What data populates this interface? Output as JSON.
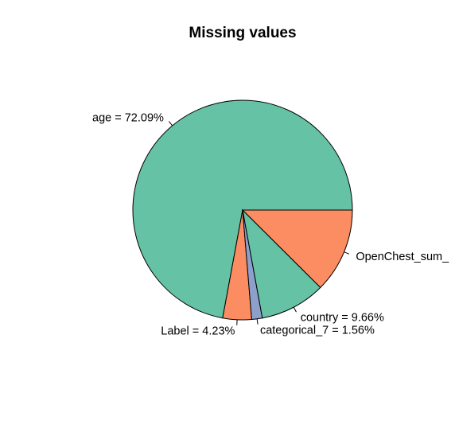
{
  "chart_data": {
    "type": "pie",
    "title": "Missing values",
    "start_angle_deg": 0,
    "direction": "counterclockwise",
    "slices": [
      {
        "label": "age = 72.09%",
        "value": 72.09,
        "color": "#66c2a5"
      },
      {
        "label": "Label = 4.23%",
        "value": 4.23,
        "color": "#fc8d62"
      },
      {
        "label": "categorical_7 = 1.56%",
        "value": 1.56,
        "color": "#8da0cb"
      },
      {
        "label": "country = 9.66%",
        "value": 9.66,
        "color": "#66c2a5"
      },
      {
        "label": "OpenChest_sum_",
        "value": 12.46,
        "color": "#fc8d62"
      }
    ]
  }
}
